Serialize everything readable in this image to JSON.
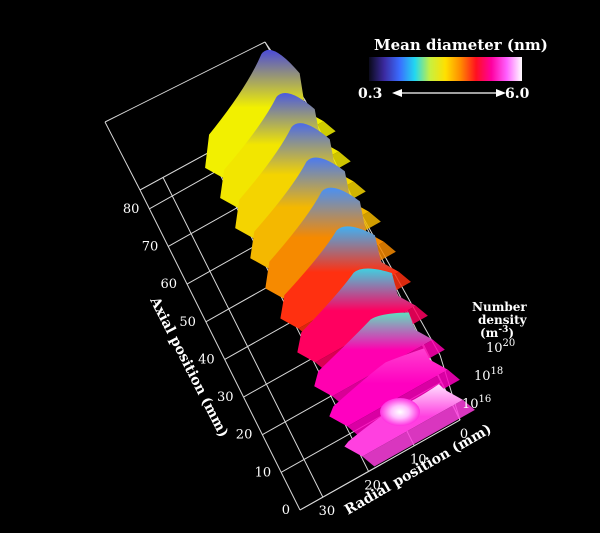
{
  "chart_data": {
    "type": "surface-3d",
    "title": "",
    "axes": {
      "axial": {
        "label": "Axial position (mm)",
        "ticks": [
          "0",
          "10",
          "20",
          "30",
          "40",
          "50",
          "60",
          "70",
          "80"
        ],
        "range": [
          0,
          85
        ]
      },
      "radial": {
        "label": "Radial position (mm)",
        "ticks": [
          "0",
          "10",
          "20",
          "30"
        ],
        "range": [
          0,
          35
        ]
      },
      "density": {
        "label_lines": [
          "Number",
          "density",
          "(m",
          ")"
        ],
        "label_exponent": "-3",
        "ticks": [
          {
            "base": "10",
            "exp": "16"
          },
          {
            "base": "10",
            "exp": "18"
          },
          {
            "base": "10",
            "exp": "20"
          }
        ],
        "scale": "log"
      }
    },
    "colorbar": {
      "title": "Mean diameter (nm)",
      "min_label": "0.3",
      "max_label": "6.0",
      "colors": [
        "#0a0a1a",
        "#3b2aa0",
        "#3a6cff",
        "#22d8f0",
        "#c8f040",
        "#ffe000",
        "#ff8a00",
        "#ff1020",
        "#ff00a0",
        "#ff60ff",
        "#ffffff"
      ]
    },
    "ridges": [
      {
        "axial": 82,
        "height": 1.0,
        "color_top": "#4b4bd8",
        "color_base": "#f2f000"
      },
      {
        "axial": 74,
        "height": 0.85,
        "color_top": "#4b5ae0",
        "color_base": "#f2e600"
      },
      {
        "axial": 66,
        "height": 0.85,
        "color_top": "#4b6ae8",
        "color_base": "#f4d400"
      },
      {
        "axial": 58,
        "height": 0.8,
        "color_top": "#4b7af0",
        "color_base": "#f4b800"
      },
      {
        "axial": 50,
        "height": 0.8,
        "color_top": "#4a90f4",
        "color_base": "#f68a00"
      },
      {
        "axial": 42,
        "height": 0.7,
        "color_top": "#40b0f4",
        "color_base": "#ff3010"
      },
      {
        "axial": 33,
        "height": 0.6,
        "color_top": "#40d0e0",
        "color_base": "#ff0060"
      },
      {
        "axial": 24,
        "height": 0.45,
        "color_top": "#60e0c0",
        "color_base": "#ff00b0"
      },
      {
        "axial": 16,
        "height": 0.3,
        "color_top": "#ff40d0",
        "color_base": "#ff00c0"
      },
      {
        "axial": 8,
        "height": 0.15,
        "color_top": "#ffe0ff",
        "color_base": "#ff40e0"
      }
    ]
  }
}
